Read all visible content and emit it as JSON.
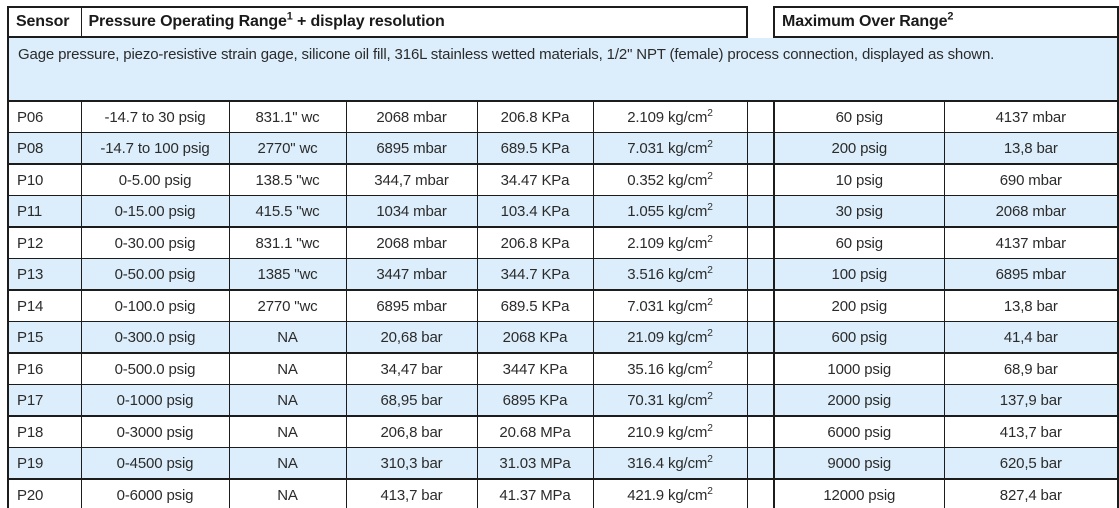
{
  "header": {
    "sensor": "Sensor",
    "operating_range": "Pressure Operating Range¹ + display resolution",
    "max_over_range": "Maximum Over Range²"
  },
  "description": "Gage pressure, piezo-resistive strain gage, silicone oil fill, 316L stainless wetted materials, 1/2\" NPT (female) process connection, displayed as shown.",
  "rows": [
    {
      "sensor": "P06",
      "range": "-14.7 to 30 psig",
      "wc": "831.1\" wc",
      "mbar": "2068 mbar",
      "kpa": "206.8 KPa",
      "kgcm2": "2.109 kg/cm²",
      "over_psig": "60 psig",
      "over_bar": "4137 mbar"
    },
    {
      "sensor": "P08",
      "range": "-14.7 to 100 psig",
      "wc": "2770\" wc",
      "mbar": "6895 mbar",
      "kpa": "689.5 KPa",
      "kgcm2": "7.031 kg/cm²",
      "over_psig": "200 psig",
      "over_bar": "13,8 bar"
    },
    {
      "sensor": "P10",
      "range": "0-5.00 psig",
      "wc": "138.5 \"wc",
      "mbar": "344,7 mbar",
      "kpa": "34.47 KPa",
      "kgcm2": "0.352 kg/cm²",
      "over_psig": "10 psig",
      "over_bar": "690 mbar"
    },
    {
      "sensor": "P11",
      "range": "0-15.00 psig",
      "wc": "415.5 \"wc",
      "mbar": "1034 mbar",
      "kpa": "103.4 KPa",
      "kgcm2": "1.055 kg/cm²",
      "over_psig": "30 psig",
      "over_bar": "2068 mbar"
    },
    {
      "sensor": "P12",
      "range": "0-30.00 psig",
      "wc": "831.1 \"wc",
      "mbar": "2068 mbar",
      "kpa": "206.8 KPa",
      "kgcm2": "2.109 kg/cm²",
      "over_psig": "60 psig",
      "over_bar": "4137 mbar"
    },
    {
      "sensor": "P13",
      "range": "0-50.00 psig",
      "wc": "1385 \"wc",
      "mbar": "3447 mbar",
      "kpa": "344.7 KPa",
      "kgcm2": "3.516 kg/cm²",
      "over_psig": "100 psig",
      "over_bar": "6895 mbar"
    },
    {
      "sensor": "P14",
      "range": "0-100.0 psig",
      "wc": "2770 \"wc",
      "mbar": "6895 mbar",
      "kpa": "689.5 KPa",
      "kgcm2": "7.031 kg/cm²",
      "over_psig": "200 psig",
      "over_bar": "13,8 bar"
    },
    {
      "sensor": "P15",
      "range": "0-300.0 psig",
      "wc": "NA",
      "mbar": "20,68 bar",
      "kpa": "2068 KPa",
      "kgcm2": "21.09 kg/cm²",
      "over_psig": "600 psig",
      "over_bar": "41,4 bar"
    },
    {
      "sensor": "P16",
      "range": "0-500.0 psig",
      "wc": "NA",
      "mbar": "34,47 bar",
      "kpa": "3447 KPa",
      "kgcm2": "35.16 kg/cm²",
      "over_psig": "1000 psig",
      "over_bar": "68,9 bar"
    },
    {
      "sensor": "P17",
      "range": "0-1000 psig",
      "wc": "NA",
      "mbar": "68,95 bar",
      "kpa": "6895 KPa",
      "kgcm2": "70.31 kg/cm²",
      "over_psig": "2000 psig",
      "over_bar": "137,9 bar"
    },
    {
      "sensor": "P18",
      "range": "0-3000 psig",
      "wc": "NA",
      "mbar": "206,8 bar",
      "kpa": "20.68 MPa",
      "kgcm2": "210.9 kg/cm²",
      "over_psig": "6000 psig",
      "over_bar": "413,7 bar"
    },
    {
      "sensor": "P19",
      "range": "0-4500 psig",
      "wc": "NA",
      "mbar": "310,3 bar",
      "kpa": "31.03 MPa",
      "kgcm2": "316.4 kg/cm²",
      "over_psig": "9000 psig",
      "over_bar": "620,5 bar"
    },
    {
      "sensor": "P20",
      "range": "0-6000 psig",
      "wc": "NA",
      "mbar": "413,7 bar",
      "kpa": "41.37 MPa",
      "kgcm2": "421.9 kg/cm²",
      "over_psig": "12000 psig",
      "over_bar": "827,4 bar"
    }
  ],
  "colors": {
    "stripe": "#dceefb",
    "line": "#1c1c1c",
    "ink": "#2b2b2b"
  }
}
